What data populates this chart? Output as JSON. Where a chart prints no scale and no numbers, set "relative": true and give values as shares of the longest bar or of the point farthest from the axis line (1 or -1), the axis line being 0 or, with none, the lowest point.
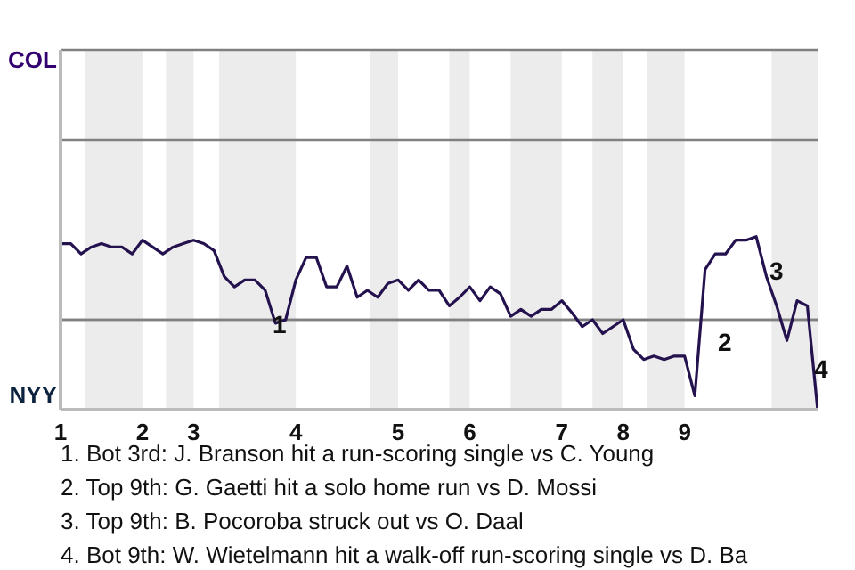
{
  "chart_data": {
    "type": "line",
    "categories": [
      "1",
      null,
      null,
      null,
      null,
      null,
      null,
      null,
      "2",
      null,
      null,
      null,
      null,
      "3",
      null,
      null,
      null,
      null,
      null,
      null,
      null,
      null,
      null,
      "4",
      null,
      null,
      null,
      null,
      null,
      null,
      null,
      null,
      null,
      "5",
      null,
      null,
      null,
      null,
      null,
      null,
      "6",
      null,
      null,
      null,
      null,
      null,
      null,
      null,
      null,
      "7",
      null,
      null,
      null,
      null,
      null,
      "8",
      null,
      null,
      null,
      null,
      null,
      "9",
      null,
      null,
      null,
      null,
      null,
      null,
      null,
      null,
      null,
      null,
      null,
      null,
      null
    ],
    "relative": true,
    "series": [
      {
        "color": "#24124f",
        "values": [
          0.96,
          0.96,
          0.9,
          0.94,
          0.96,
          0.94,
          0.94,
          0.9,
          0.98,
          0.94,
          0.9,
          0.94,
          0.96,
          0.98,
          0.96,
          0.92,
          0.77,
          0.71,
          0.75,
          0.75,
          0.69,
          0.5,
          0.52,
          0.75,
          0.88,
          0.88,
          0.71,
          0.71,
          0.83,
          0.65,
          0.69,
          0.65,
          0.73,
          0.75,
          0.69,
          0.75,
          0.69,
          0.69,
          0.6,
          0.65,
          0.71,
          0.63,
          0.71,
          0.67,
          0.54,
          0.58,
          0.54,
          0.58,
          0.58,
          0.63,
          0.56,
          0.48,
          0.52,
          0.44,
          0.48,
          0.52,
          0.35,
          0.29,
          0.31,
          0.29,
          0.31,
          0.31,
          0.08,
          0.81,
          0.9,
          0.9,
          0.98,
          0.98,
          1,
          0.77,
          0.6,
          0.4,
          0.63,
          0.6,
          0
        ]
      }
    ],
    "ref_lines": [
      {
        "axis": "y",
        "value": 0.52,
        "color": "#808080"
      }
    ],
    "annotations": [
      "1",
      "2",
      "3",
      "4",
      "COL",
      "NYY",
      "1. Bot 3rd: J. Branson hit a run-scoring single vs C. Young",
      "2. Top 9th: G. Gaetti hit a solo home run vs D. Mossi",
      "3. Top 9th: B. Pocoroba struck out vs O. Daal",
      "4. Bot 9th: W. Wietelmann hit a walk-off run-scoring single vs D. Ba"
    ]
  }
}
